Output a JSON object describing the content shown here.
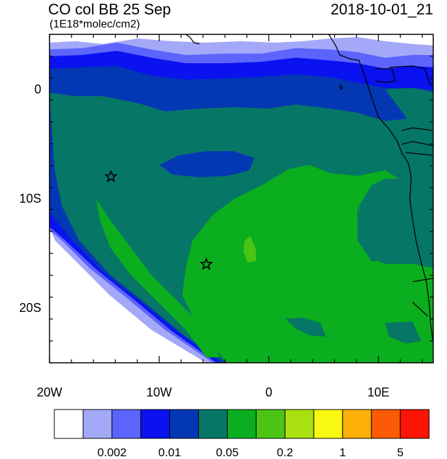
{
  "header": {
    "title": "CO col BB 25 Sep",
    "units": "(1E18*molec/cm2)",
    "datetime": "2018-10-01_21"
  },
  "map": {
    "lon_range": [
      -20,
      15
    ],
    "lat_range": [
      -25,
      5
    ],
    "y_ticks": [
      {
        "lat": 0,
        "label": "0"
      },
      {
        "lat": -10,
        "label": "10S"
      },
      {
        "lat": -20,
        "label": "20S"
      }
    ],
    "x_ticks": [
      {
        "lon": -20,
        "label": "20W"
      },
      {
        "lon": -10,
        "label": "10W"
      },
      {
        "lon": 0,
        "label": "0"
      },
      {
        "lon": 10,
        "label": "10E"
      }
    ],
    "markers": [
      {
        "name": "star-marker",
        "lon": -14.4,
        "lat": -8.0
      },
      {
        "name": "star-marker",
        "lon": -5.7,
        "lat": -16.0
      }
    ]
  },
  "colorbar": {
    "colors": [
      "#ffffff",
      "#a4a8f8",
      "#5c64fc",
      "#0a12f0",
      "#0437b4",
      "#067666",
      "#0aae1e",
      "#4cc414",
      "#a8e010",
      "#f8f810",
      "#fcb006",
      "#fc5a04",
      "#fc1404"
    ],
    "labels": [
      {
        "after_box": 2,
        "text": "0.002"
      },
      {
        "after_box": 4,
        "text": "0.01"
      },
      {
        "after_box": 6,
        "text": "0.05"
      },
      {
        "after_box": 8,
        "text": "0.2"
      },
      {
        "after_box": 10,
        "text": "1"
      },
      {
        "after_box": 12,
        "text": "5"
      }
    ]
  }
}
